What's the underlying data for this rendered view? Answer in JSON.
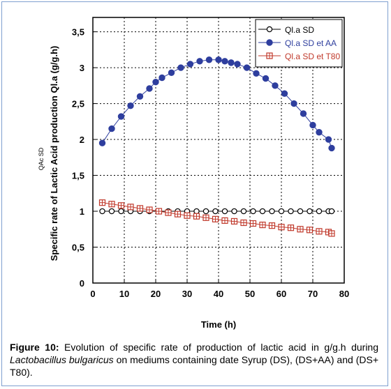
{
  "chart_data": {
    "type": "scatter",
    "title": "",
    "xlabel": "Time (h)",
    "ylabel": "Specific rate of Lactic Acid production Ql.a (g/g.h)",
    "ylabel_secondary": "QAc SD",
    "xlim": [
      0,
      80
    ],
    "ylim": [
      0,
      3.7
    ],
    "xticks": [
      "0",
      "10",
      "20",
      "30",
      "40",
      "50",
      "60",
      "70",
      "80"
    ],
    "yticks": [
      "0",
      "0,5",
      "1",
      "1,5",
      "2",
      "2,5",
      "3",
      "3,5"
    ],
    "grid": true,
    "legend_position": "top-right",
    "series": [
      {
        "name": "Ql.a SD",
        "marker": "open-circle",
        "color": "#000000",
        "x": [
          3,
          6,
          9,
          12,
          15,
          18,
          21,
          24,
          27,
          30,
          33,
          36,
          39,
          42,
          45,
          48,
          51,
          54,
          57,
          60,
          63,
          66,
          69,
          72,
          75,
          76
        ],
        "y": [
          1.0,
          1.0,
          1.0,
          1.0,
          1.0,
          1.0,
          1.0,
          1.0,
          1.0,
          1.0,
          1.0,
          1.0,
          1.0,
          1.0,
          1.0,
          1.0,
          1.0,
          1.0,
          1.0,
          1.0,
          1.0,
          1.0,
          1.0,
          1.0,
          1.0,
          1.0
        ]
      },
      {
        "name": "Ql.a SD et AA",
        "marker": "filled-circle",
        "color": "#2e3e9e",
        "x": [
          3,
          6,
          9,
          12,
          15,
          18,
          20,
          22,
          25,
          28,
          31,
          34,
          37,
          40,
          42,
          44,
          46,
          49,
          52,
          55,
          58,
          61,
          64,
          67,
          70,
          72,
          75,
          76
        ],
        "y": [
          1.95,
          2.15,
          2.32,
          2.47,
          2.6,
          2.71,
          2.8,
          2.86,
          2.93,
          3.0,
          3.05,
          3.09,
          3.11,
          3.11,
          3.09,
          3.07,
          3.05,
          3.0,
          2.92,
          2.85,
          2.75,
          2.64,
          2.5,
          2.36,
          2.2,
          2.1,
          2.0,
          1.88
        ]
      },
      {
        "name": "Ql.a SD et T80",
        "marker": "open-square-cross",
        "color": "#c0392b",
        "x": [
          3,
          6,
          9,
          12,
          15,
          18,
          21,
          24,
          27,
          30,
          33,
          36,
          39,
          42,
          45,
          48,
          51,
          54,
          57,
          60,
          63,
          66,
          69,
          72,
          75,
          76
        ],
        "y": [
          1.12,
          1.1,
          1.08,
          1.06,
          1.04,
          1.02,
          1.0,
          0.98,
          0.96,
          0.94,
          0.93,
          0.91,
          0.89,
          0.87,
          0.86,
          0.84,
          0.83,
          0.81,
          0.8,
          0.78,
          0.77,
          0.75,
          0.74,
          0.72,
          0.71,
          0.69
        ]
      }
    ]
  },
  "caption": {
    "label": "Figure 10:",
    "text1": " Evolution of specific rate of production of lactic acid in g/g.h during ",
    "species": "Lactobacillus bulgaricus",
    "text2": " on mediums containing date Syrup (DS), (DS+AA) and (DS+ T80)."
  }
}
